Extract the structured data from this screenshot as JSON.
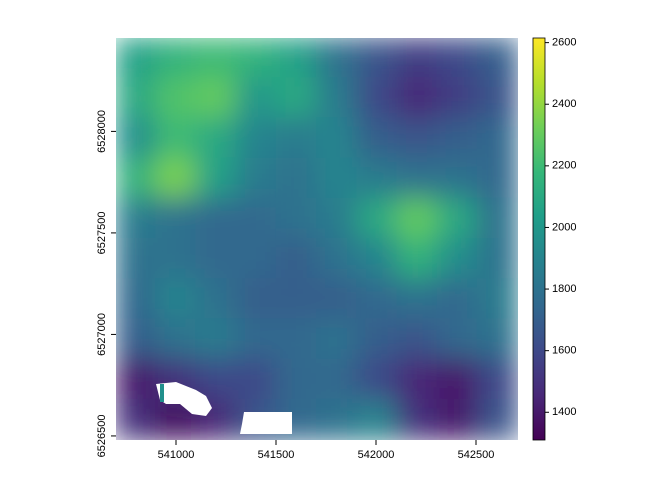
{
  "chart_data": {
    "type": "raster",
    "xlim": [
      540700,
      542710
    ],
    "ylim": [
      6526480,
      6528460
    ],
    "xticks": [
      541000,
      541500,
      542000,
      542500
    ],
    "yticks": [
      6526500,
      6527000,
      6527500,
      6528000
    ],
    "zlim": [
      1310,
      2615
    ],
    "zticks": [
      1400,
      1600,
      1800,
      2000,
      2200,
      2400,
      2600
    ],
    "colormap": "viridis",
    "z": [
      [
        2050,
        2150,
        2200,
        2150,
        2050,
        1800,
        1650,
        1550,
        1600,
        1700
      ],
      [
        2100,
        2250,
        2300,
        2000,
        2100,
        1850,
        1600,
        1450,
        1550,
        1650
      ],
      [
        1950,
        2200,
        2100,
        1900,
        1850,
        1900,
        1700,
        1650,
        1700,
        1750
      ],
      [
        2150,
        2350,
        2050,
        1850,
        1800,
        1900,
        1850,
        1800,
        1800,
        1750
      ],
      [
        1850,
        1800,
        1750,
        1750,
        1800,
        1850,
        2100,
        2300,
        2100,
        1800
      ],
      [
        1800,
        1800,
        1750,
        1750,
        1700,
        1800,
        1900,
        2150,
        1950,
        1800
      ],
      [
        1750,
        1900,
        1800,
        1700,
        1700,
        1700,
        1750,
        1800,
        1750,
        1850
      ],
      [
        1700,
        1800,
        1850,
        1750,
        1750,
        1800,
        1700,
        1650,
        1750,
        1800
      ],
      [
        1400,
        1500,
        1600,
        1600,
        1750,
        1750,
        1600,
        1450,
        1400,
        1600
      ],
      [
        1500,
        1350,
        1450,
        1650,
        1750,
        1800,
        1900,
        1500,
        1400,
        1650
      ]
    ]
  }
}
